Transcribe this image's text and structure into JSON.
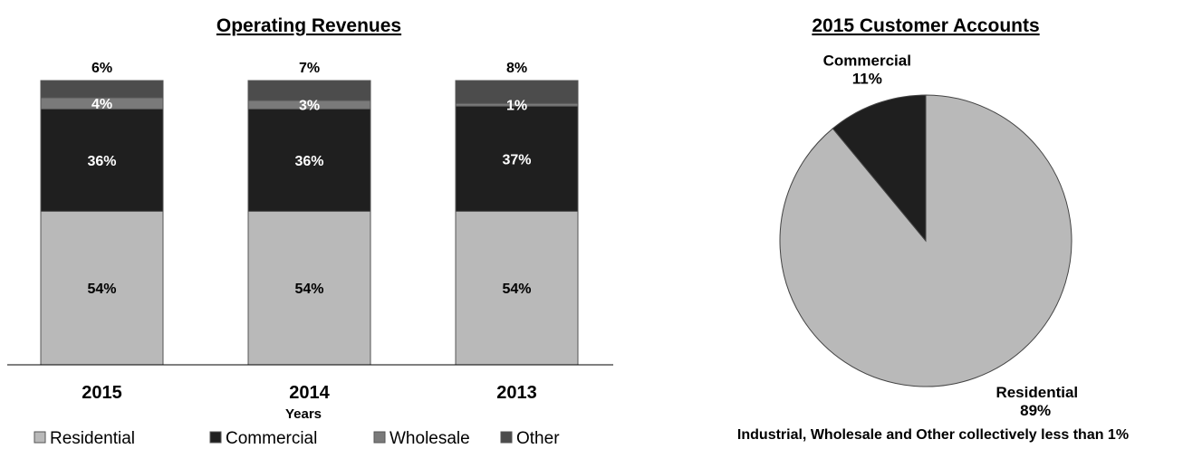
{
  "chart_data": [
    {
      "type": "bar",
      "stacked": true,
      "title": "Operating Revenues",
      "xlabel": "Years",
      "ylabel": "",
      "ylim": [
        0,
        100
      ],
      "categories": [
        "2015",
        "2014",
        "2013"
      ],
      "series": [
        {
          "name": "Residential",
          "values": [
            54,
            54,
            54
          ],
          "labels": [
            "54%",
            "54%",
            "54%"
          ],
          "color": "#b9b9b9",
          "label_color": "#000000"
        },
        {
          "name": "Commercial",
          "values": [
            36,
            36,
            37
          ],
          "labels": [
            "36%",
            "36%",
            "37%"
          ],
          "color": "#1f1f1f",
          "label_color": "#ffffff"
        },
        {
          "name": "Wholesale",
          "values": [
            4,
            3,
            1
          ],
          "labels": [
            "4%",
            "3%",
            "1%"
          ],
          "color": "#7a7a7a",
          "label_color": "#ffffff"
        },
        {
          "name": "Other",
          "values": [
            6,
            7,
            8
          ],
          "labels": [
            "6%",
            "7%",
            "8%"
          ],
          "color": "#4c4c4c",
          "label_color": "#000000"
        }
      ],
      "legend_position": "bottom"
    },
    {
      "type": "pie",
      "title": "2015 Customer Accounts",
      "slices": [
        {
          "name": "Residential",
          "value": 89,
          "label": "89%",
          "color": "#b9b9b9"
        },
        {
          "name": "Commercial",
          "value": 11,
          "label": "11%",
          "color": "#1f1f1f"
        }
      ],
      "footnote": "Industrial, Wholesale and Other collectively less than 1%"
    }
  ]
}
